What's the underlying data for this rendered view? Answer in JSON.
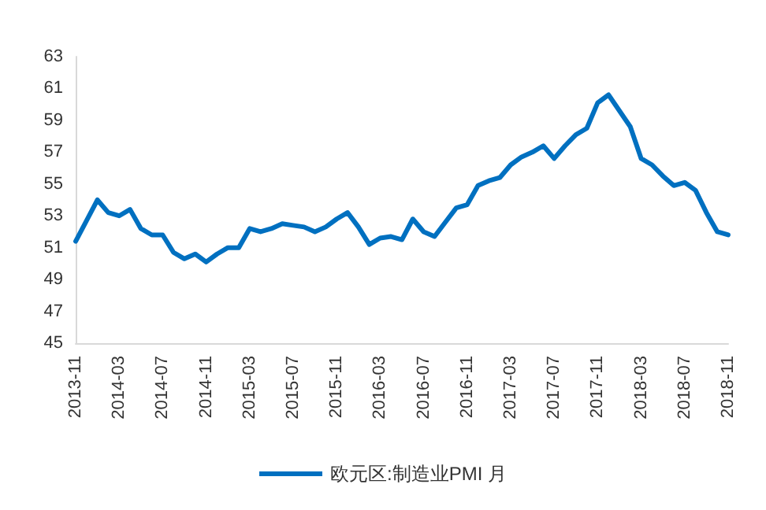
{
  "chart_data": {
    "type": "line",
    "categories": [
      "2013-11",
      null,
      null,
      null,
      "2014-03",
      null,
      null,
      null,
      "2014-07",
      null,
      null,
      null,
      "2014-11",
      null,
      null,
      null,
      "2015-03",
      null,
      null,
      null,
      "2015-07",
      null,
      null,
      null,
      "2015-11",
      null,
      null,
      null,
      "2016-03",
      null,
      null,
      null,
      "2016-07",
      null,
      null,
      null,
      "2016-11",
      null,
      null,
      null,
      "2017-03",
      null,
      null,
      null,
      "2017-07",
      null,
      null,
      null,
      "2017-11",
      null,
      null,
      null,
      "2018-03",
      null,
      null,
      null,
      "2018-07",
      null,
      null,
      null,
      "2018-11"
    ],
    "series": [
      {
        "name": "欧元区:制造业PMI 月",
        "color": "#0070c0",
        "values": [
          51.4,
          52.7,
          54.0,
          53.2,
          53.0,
          53.4,
          52.2,
          51.8,
          51.8,
          50.7,
          50.3,
          50.6,
          50.1,
          50.6,
          51.0,
          51.0,
          52.2,
          52.0,
          52.2,
          52.5,
          52.4,
          52.3,
          52.0,
          52.3,
          52.8,
          53.2,
          52.3,
          51.2,
          51.6,
          51.7,
          51.5,
          52.8,
          52.0,
          51.7,
          52.6,
          53.5,
          53.7,
          54.9,
          55.2,
          55.4,
          56.2,
          56.7,
          57.0,
          57.4,
          56.6,
          57.4,
          58.1,
          58.5,
          60.1,
          60.6,
          59.6,
          58.6,
          56.6,
          56.2,
          55.5,
          54.9,
          55.1,
          54.6,
          53.2,
          52.0,
          51.8
        ]
      }
    ],
    "ylim": [
      45,
      63
    ],
    "yticks": [
      45,
      47,
      49,
      51,
      53,
      55,
      57,
      59,
      61,
      63
    ],
    "grid": false,
    "legend": "bottom",
    "marker": "none",
    "line_style": "solid"
  }
}
